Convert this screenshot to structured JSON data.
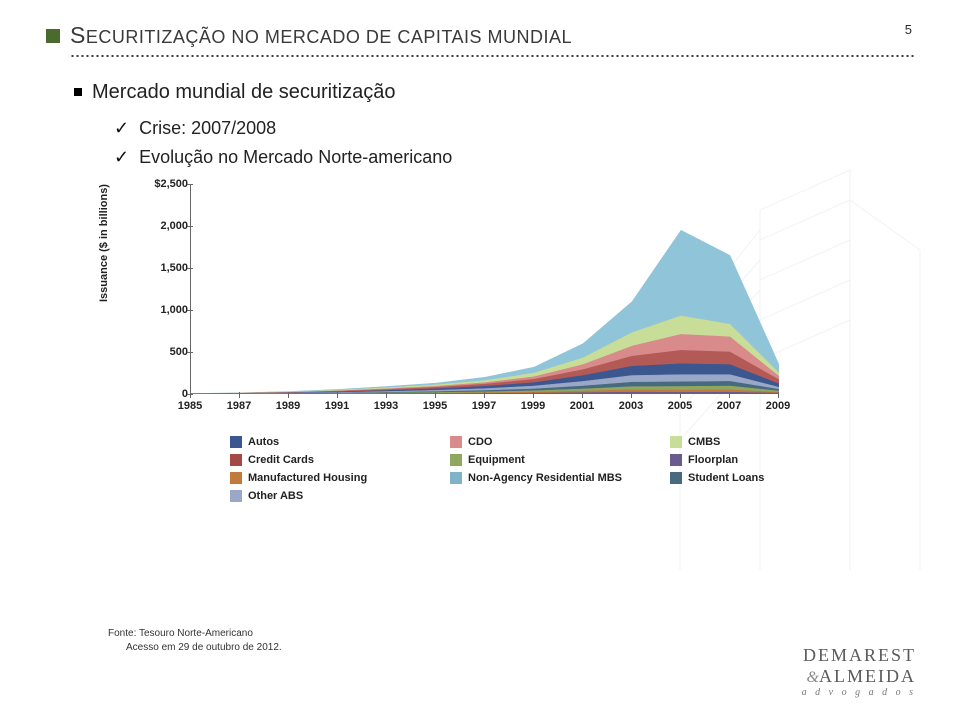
{
  "page_number": "5",
  "title_prefix_big": "S",
  "title_rest": "ECURITIZAÇÃO NO MERCADO DE CAPITAIS MUNDIAL",
  "bullet": "Mercado mundial de securitização",
  "check_1": "Crise: 2007/2008",
  "check_2": "Evolução no Mercado Norte-americano",
  "footnote_l1": "Fonte: Tesouro Norte-Americano",
  "footnote_l2": "Acesso em 29 de outubro de 2012.",
  "logo": {
    "l1": "DEMAREST",
    "l2": "ALMEIDA",
    "sub": "a d v o g a d o s"
  },
  "chart": {
    "type": "area",
    "y_label": "Issuance ($ in billions)",
    "y_min": 0,
    "y_max": 2500,
    "y_tick_step": 500,
    "y_ticks": [
      "0",
      "500",
      "1,000",
      "1,500",
      "2,000",
      "$2,500"
    ],
    "years": [
      1985,
      1987,
      1989,
      1991,
      1993,
      1995,
      1997,
      1999,
      2001,
      2003,
      2005,
      2007,
      2009
    ],
    "series": [
      {
        "name": "Autos",
        "color": "#3c578f"
      },
      {
        "name": "CDO",
        "color": "#d98a8a"
      },
      {
        "name": "CMBS",
        "color": "#c8dd97"
      },
      {
        "name": "Credit Cards",
        "color": "#a34a46"
      },
      {
        "name": "Equipment",
        "color": "#8fa85f"
      },
      {
        "name": "Floorplan",
        "color": "#6b5a8f"
      },
      {
        "name": "Manufactured Housing",
        "color": "#c07a3b"
      },
      {
        "name": "Non-Agency Residential MBS",
        "color": "#7fb3c9"
      },
      {
        "name": "Student Loans",
        "color": "#476a7f"
      },
      {
        "name": "Other ABS",
        "color": "#9aa7c7"
      }
    ],
    "stack_top": {
      "nonagency": [
        5,
        15,
        30,
        55,
        90,
        130,
        200,
        320,
        600,
        1100,
        1950,
        1650,
        350
      ],
      "cmbs": [
        5,
        12,
        25,
        45,
        75,
        110,
        160,
        250,
        430,
        730,
        930,
        830,
        250
      ],
      "cdo": [
        5,
        10,
        20,
        38,
        62,
        92,
        135,
        205,
        350,
        570,
        710,
        680,
        210
      ],
      "creditcards": [
        4,
        9,
        18,
        33,
        54,
        80,
        118,
        175,
        290,
        450,
        520,
        500,
        170
      ],
      "autos": [
        3,
        7,
        14,
        26,
        42,
        62,
        92,
        135,
        220,
        330,
        360,
        350,
        120
      ],
      "other": [
        2,
        5,
        10,
        18,
        30,
        44,
        64,
        95,
        150,
        220,
        230,
        230,
        80
      ],
      "student": [
        1,
        3,
        6,
        11,
        19,
        28,
        41,
        60,
        95,
        140,
        145,
        150,
        55
      ],
      "equipment": [
        1,
        2,
        4,
        7,
        12,
        18,
        26,
        38,
        60,
        88,
        90,
        95,
        35
      ],
      "mfg": [
        0,
        1,
        2,
        4,
        7,
        10,
        15,
        22,
        35,
        50,
        48,
        50,
        20
      ],
      "floorplan": [
        0,
        0,
        1,
        2,
        3,
        5,
        7,
        10,
        16,
        22,
        20,
        22,
        10
      ]
    },
    "fill_colors": {
      "nonagency": "#8fc4d9",
      "cmbs": "#c8dd97",
      "cdo": "#d98a8a",
      "creditcards": "#b45a56",
      "autos": "#3c578f",
      "other": "#9aa7c7",
      "student": "#476a7f",
      "equipment": "#8fa85f",
      "mfg": "#c07a3b",
      "floorplan": "#6b5a8f"
    },
    "background": "#ffffff",
    "axis_color": "#666666",
    "tick_font_size": 11
  }
}
